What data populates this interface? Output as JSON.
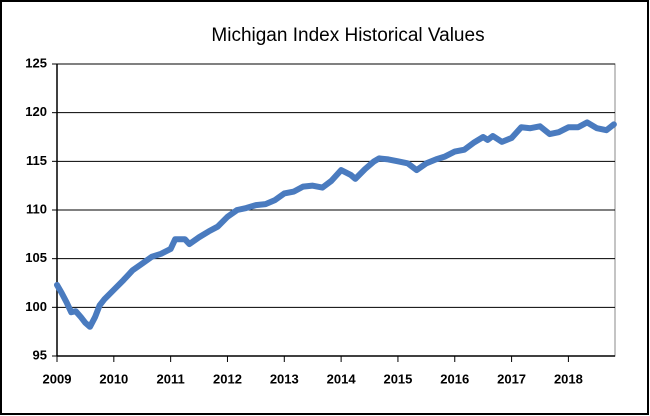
{
  "chart_data": {
    "type": "line",
    "title": "Michigan Index Historical Values",
    "x": [
      2009.0,
      2009.08,
      2009.17,
      2009.25,
      2009.33,
      2009.42,
      2009.5,
      2009.58,
      2009.67,
      2009.75,
      2009.83,
      2010.0,
      2010.17,
      2010.33,
      2010.5,
      2010.67,
      2010.83,
      2011.0,
      2011.08,
      2011.25,
      2011.33,
      2011.5,
      2011.67,
      2011.83,
      2012.0,
      2012.17,
      2012.33,
      2012.5,
      2012.67,
      2012.83,
      2013.0,
      2013.17,
      2013.33,
      2013.5,
      2013.67,
      2013.83,
      2014.0,
      2014.17,
      2014.25,
      2014.42,
      2014.58,
      2014.67,
      2014.83,
      2015.0,
      2015.17,
      2015.33,
      2015.5,
      2015.67,
      2015.83,
      2016.0,
      2016.17,
      2016.33,
      2016.5,
      2016.58,
      2016.67,
      2016.83,
      2017.0,
      2017.17,
      2017.33,
      2017.5,
      2017.67,
      2017.83,
      2018.0,
      2018.17,
      2018.33,
      2018.5,
      2018.67,
      2018.8
    ],
    "series": [
      {
        "name": "Michigan Index",
        "color": "#4a7bbf",
        "values": [
          102.3,
          101.5,
          100.5,
          99.5,
          99.6,
          99.0,
          98.4,
          98.0,
          99.0,
          100.2,
          100.8,
          101.8,
          102.8,
          103.8,
          104.5,
          105.2,
          105.5,
          106.0,
          107.0,
          107.0,
          106.5,
          107.2,
          107.8,
          108.3,
          109.3,
          110.0,
          110.2,
          110.5,
          110.6,
          111.0,
          111.7,
          111.9,
          112.4,
          112.5,
          112.3,
          113.0,
          114.1,
          113.6,
          113.2,
          114.2,
          115.0,
          115.3,
          115.2,
          115.0,
          114.8,
          114.1,
          114.8,
          115.2,
          115.5,
          116.0,
          116.2,
          116.9,
          117.5,
          117.2,
          117.6,
          117.0,
          117.4,
          118.5,
          118.4,
          118.6,
          117.8,
          118.0,
          118.5,
          118.5,
          119.0,
          118.4,
          118.2,
          118.8
        ]
      }
    ],
    "xlim": [
      2009,
      2018.82
    ],
    "xticks": [
      2009,
      2010,
      2011,
      2012,
      2013,
      2014,
      2015,
      2016,
      2017,
      2018
    ],
    "ylim": [
      95,
      125
    ],
    "yticks": [
      95,
      100,
      105,
      110,
      115,
      120,
      125
    ],
    "grid": true
  }
}
